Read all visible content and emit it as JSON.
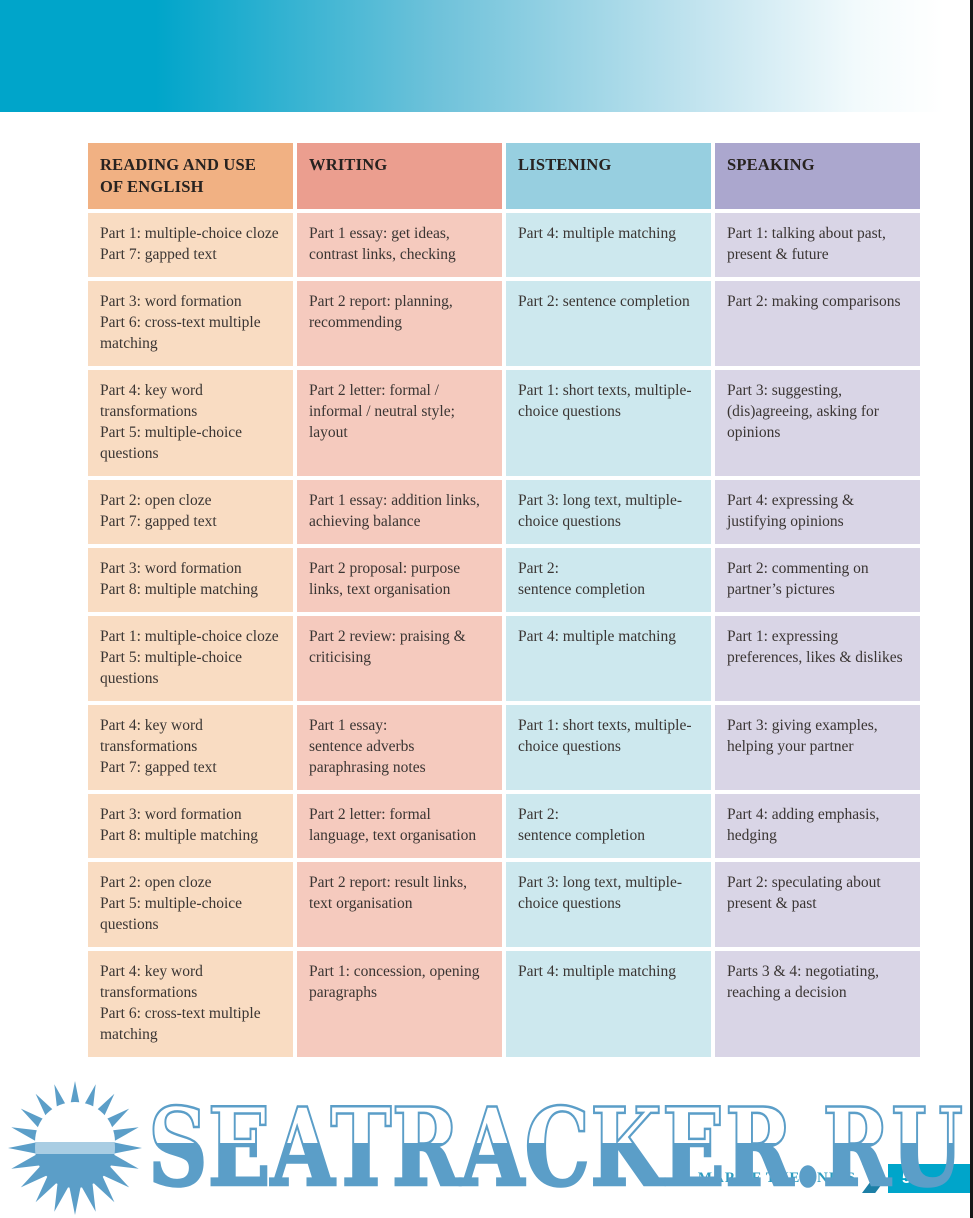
{
  "document": {
    "kind": "coursebook map-of-the-units page"
  },
  "table": {
    "column_keys": [
      "reading",
      "writing",
      "listening",
      "speaking"
    ],
    "headers": [
      {
        "key": "reading",
        "label": "READING AND USE OF ENGLISH"
      },
      {
        "key": "writing",
        "label": "WRITING"
      },
      {
        "key": "listening",
        "label": "LISTENING"
      },
      {
        "key": "speaking",
        "label": "SPEAKING"
      }
    ],
    "rows": [
      {
        "reading": "Part 1: multiple-choice cloze\nPart 7: gapped text",
        "writing": "Part 1 essay: get ideas, contrast links, checking",
        "listening": "Part 4: multiple matching",
        "speaking": "Part 1: talking about past, present & future"
      },
      {
        "reading": "Part 3: word formation\nPart 6: cross-text multiple matching",
        "writing": "Part 2 report: planning, recommending",
        "listening": "Part 2: sentence completion",
        "speaking": "Part 2: making comparisons"
      },
      {
        "reading": "Part 4: key word transformations\nPart 5: multiple-choice questions",
        "writing": "Part 2 letter: formal / informal / neutral style; layout",
        "listening": "Part 1: short texts, multiple-choice questions",
        "speaking": "Part 3: suggesting, (dis)agreeing, asking for opinions"
      },
      {
        "reading": "Part 2: open cloze\nPart 7: gapped text",
        "writing": "Part 1 essay: addition links, achieving balance",
        "listening": "Part 3: long text, multiple-choice questions",
        "speaking": "Part 4: expressing & justifying opinions"
      },
      {
        "reading": "Part 3: word formation\nPart 8: multiple matching",
        "writing": "Part 2 proposal: purpose links, text organisation",
        "listening": "Part 2:\nsentence completion",
        "speaking": "Part 2: commenting on partner’s pictures"
      },
      {
        "reading": "Part 1: multiple-choice cloze\nPart 5: multiple-choice questions",
        "writing": "Part 2 review: praising & criticising",
        "listening": "Part 4: multiple matching",
        "speaking": "Part 1: expressing preferences, likes & dislikes"
      },
      {
        "reading": "Part 4: key word transformations\nPart 7: gapped text",
        "writing": "Part 1 essay:\nsentence adverbs paraphrasing notes",
        "listening": "Part 1: short texts, multiple-choice questions",
        "speaking": "Part 3: giving examples, helping your partner"
      },
      {
        "reading": "Part 3: word formation\nPart 8: multiple matching",
        "writing": "Part 2 letter: formal language, text organisation",
        "listening": "Part 2:\nsentence completion",
        "speaking": "Part 4: adding emphasis, hedging"
      },
      {
        "reading": "Part 2: open cloze\nPart 5: multiple-choice questions",
        "writing": "Part 2 report: result links, text organisation",
        "listening": "Part 3: long text, multiple-choice questions",
        "speaking": "Part 2: speculating about present & past"
      },
      {
        "reading": "Part 4: key word transformations\nPart 6: cross-text multiple matching",
        "writing": "Part 1: concession, opening paragraphs",
        "listening": "Part 4: multiple matching",
        "speaking": "Parts 3 & 4: negotiating, reaching a decision"
      }
    ]
  },
  "footer": {
    "section_label": "MAP OF THE UNITS",
    "page_number": "5"
  },
  "watermark": {
    "text": "SEATRACKER.RU",
    "logo": "sun"
  },
  "colors": {
    "band": "#00a5ca",
    "reading-header": "#f1b183",
    "writing-header": "#eb9e8f",
    "listening-header": "#97cfe0",
    "speaking-header": "#aba7ce",
    "reading-cell": "#f9dcc2",
    "writing-cell": "#f5cabe",
    "listening-cell": "#cde8ee",
    "speaking-cell": "#d9d5e6",
    "header-text": "#272220",
    "body-text": "#3a3533",
    "watermark-blue": "#5b9ec8",
    "watermark-band": "#a9cde3",
    "footer-label": "#2e9cc0",
    "chevron": "#1d7fa6",
    "pagebox": "#00a5ca",
    "page-number-text": "#ffffff",
    "edge-line": "#161616"
  }
}
